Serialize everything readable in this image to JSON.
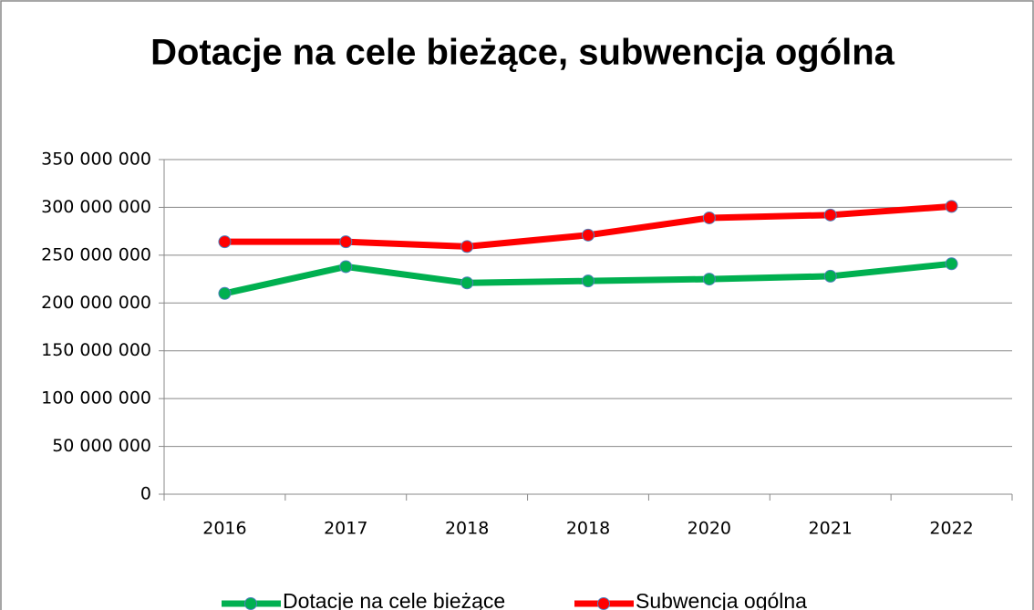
{
  "chart_data": {
    "type": "line",
    "title": "Dotacje na cele bieżące, subwencja ogólna",
    "categories": [
      "2016",
      "2017",
      "2018",
      "2018",
      "2020",
      "2021",
      "2022"
    ],
    "series": [
      {
        "name": "Dotacje na cele bieżące",
        "color": "#00b050",
        "values": [
          210000000,
          238000000,
          221000000,
          223000000,
          225000000,
          228000000,
          241000000
        ]
      },
      {
        "name": "Subwencja ogólna",
        "color": "#ff0000",
        "values": [
          264000000,
          264000000,
          259000000,
          271000000,
          289000000,
          292000000,
          301000000
        ]
      }
    ],
    "ylim": [
      0,
      350000000
    ],
    "yticks": [
      0,
      {
        "value": 50000000,
        "label": "50 000 000"
      },
      {
        "value": 100000000,
        "label": "100 000 000"
      },
      {
        "value": 150000000,
        "label": "150 000 000"
      },
      {
        "value": 200000000,
        "label": "200 000 000"
      },
      {
        "value": 250000000,
        "label": "250 000 000"
      },
      {
        "value": 300000000,
        "label": "300 000 000"
      },
      {
        "value": 350000000,
        "label": "350 000 000"
      }
    ],
    "grid": true,
    "legend": "bottom"
  }
}
